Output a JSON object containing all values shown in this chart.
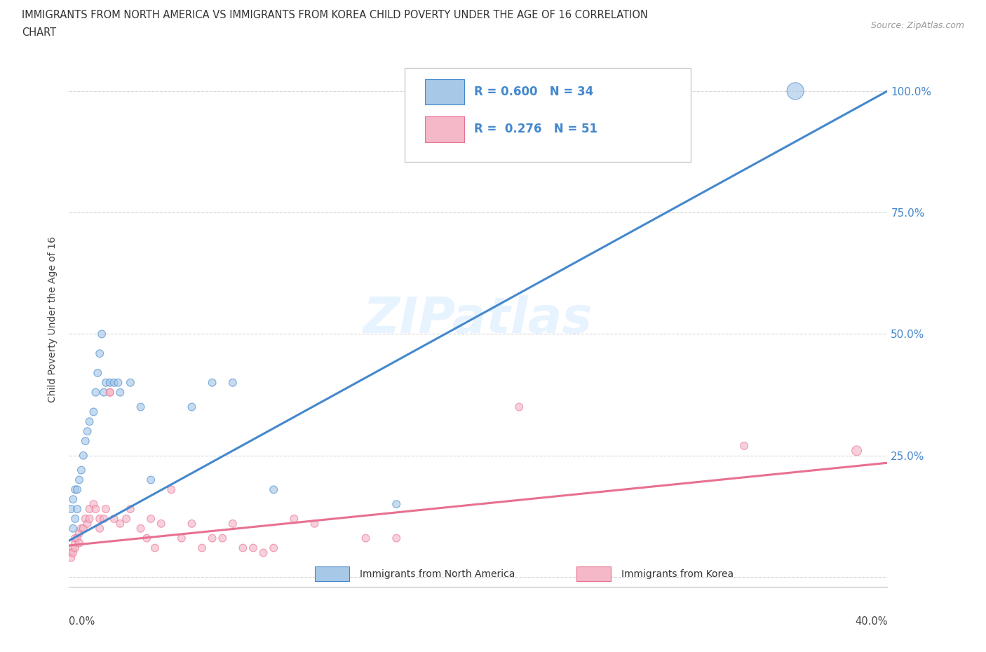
{
  "title_line1": "IMMIGRANTS FROM NORTH AMERICA VS IMMIGRANTS FROM KOREA CHILD POVERTY UNDER THE AGE OF 16 CORRELATION",
  "title_line2": "CHART",
  "source_text": "Source: ZipAtlas.com",
  "ylabel": "Child Poverty Under the Age of 16",
  "watermark": "ZIPatlas",
  "blue_color": "#a8c8e8",
  "pink_color": "#f4b8c8",
  "blue_line_color": "#4488cc",
  "pink_line_color": "#e87090",
  "blue_scatter": [
    [
      0.001,
      0.14
    ],
    [
      0.002,
      0.1
    ],
    [
      0.002,
      0.16
    ],
    [
      0.003,
      0.12
    ],
    [
      0.003,
      0.18
    ],
    [
      0.004,
      0.14
    ],
    [
      0.004,
      0.18
    ],
    [
      0.005,
      0.2
    ],
    [
      0.006,
      0.22
    ],
    [
      0.007,
      0.25
    ],
    [
      0.008,
      0.28
    ],
    [
      0.009,
      0.3
    ],
    [
      0.01,
      0.32
    ],
    [
      0.012,
      0.34
    ],
    [
      0.013,
      0.38
    ],
    [
      0.014,
      0.42
    ],
    [
      0.015,
      0.46
    ],
    [
      0.016,
      0.5
    ],
    [
      0.017,
      0.38
    ],
    [
      0.018,
      0.4
    ],
    [
      0.02,
      0.4
    ],
    [
      0.022,
      0.4
    ],
    [
      0.024,
      0.4
    ],
    [
      0.025,
      0.38
    ],
    [
      0.03,
      0.4
    ],
    [
      0.035,
      0.35
    ],
    [
      0.04,
      0.2
    ],
    [
      0.06,
      0.35
    ],
    [
      0.07,
      0.4
    ],
    [
      0.08,
      0.4
    ],
    [
      0.1,
      0.18
    ],
    [
      0.16,
      0.15
    ],
    [
      0.29,
      1.0
    ],
    [
      0.355,
      1.0
    ]
  ],
  "pink_scatter": [
    [
      0.001,
      0.05
    ],
    [
      0.001,
      0.04
    ],
    [
      0.002,
      0.06
    ],
    [
      0.002,
      0.05
    ],
    [
      0.003,
      0.07
    ],
    [
      0.003,
      0.06
    ],
    [
      0.003,
      0.08
    ],
    [
      0.004,
      0.08
    ],
    [
      0.005,
      0.09
    ],
    [
      0.005,
      0.07
    ],
    [
      0.006,
      0.1
    ],
    [
      0.007,
      0.1
    ],
    [
      0.008,
      0.12
    ],
    [
      0.009,
      0.11
    ],
    [
      0.01,
      0.14
    ],
    [
      0.01,
      0.12
    ],
    [
      0.012,
      0.15
    ],
    [
      0.013,
      0.14
    ],
    [
      0.015,
      0.12
    ],
    [
      0.015,
      0.1
    ],
    [
      0.017,
      0.12
    ],
    [
      0.018,
      0.14
    ],
    [
      0.02,
      0.38
    ],
    [
      0.02,
      0.38
    ],
    [
      0.022,
      0.12
    ],
    [
      0.025,
      0.11
    ],
    [
      0.028,
      0.12
    ],
    [
      0.03,
      0.14
    ],
    [
      0.035,
      0.1
    ],
    [
      0.038,
      0.08
    ],
    [
      0.04,
      0.12
    ],
    [
      0.042,
      0.06
    ],
    [
      0.045,
      0.11
    ],
    [
      0.05,
      0.18
    ],
    [
      0.055,
      0.08
    ],
    [
      0.06,
      0.11
    ],
    [
      0.065,
      0.06
    ],
    [
      0.07,
      0.08
    ],
    [
      0.075,
      0.08
    ],
    [
      0.08,
      0.11
    ],
    [
      0.085,
      0.06
    ],
    [
      0.09,
      0.06
    ],
    [
      0.095,
      0.05
    ],
    [
      0.1,
      0.06
    ],
    [
      0.11,
      0.12
    ],
    [
      0.12,
      0.11
    ],
    [
      0.145,
      0.08
    ],
    [
      0.16,
      0.08
    ],
    [
      0.22,
      0.35
    ],
    [
      0.33,
      0.27
    ],
    [
      0.385,
      0.26
    ]
  ],
  "blue_dot_sizes": [
    60,
    60,
    60,
    60,
    60,
    60,
    60,
    60,
    60,
    60,
    60,
    60,
    60,
    60,
    60,
    60,
    60,
    60,
    60,
    60,
    60,
    60,
    60,
    60,
    60,
    60,
    60,
    60,
    60,
    60,
    60,
    60,
    600,
    300
  ],
  "pink_dot_sizes": [
    60,
    60,
    60,
    60,
    60,
    60,
    60,
    60,
    60,
    60,
    60,
    60,
    60,
    60,
    60,
    60,
    60,
    60,
    60,
    60,
    60,
    60,
    60,
    60,
    60,
    60,
    60,
    60,
    60,
    60,
    60,
    60,
    60,
    60,
    60,
    60,
    60,
    60,
    60,
    60,
    60,
    60,
    60,
    60,
    60,
    60,
    60,
    60,
    60,
    60,
    100
  ],
  "blue_line_x": [
    0.0,
    0.4
  ],
  "blue_line_y": [
    0.075,
    1.0
  ],
  "pink_line_x": [
    0.0,
    0.4
  ],
  "pink_line_y": [
    0.065,
    0.235
  ],
  "xlim": [
    0.0,
    0.4
  ],
  "ylim": [
    -0.02,
    1.08
  ],
  "yticks": [
    0.0,
    0.25,
    0.5,
    0.75,
    1.0
  ],
  "ytick_labels_right": [
    "",
    "25.0%",
    "50.0%",
    "75.0%",
    "100.0%"
  ],
  "xtick_positions": [
    0.0,
    0.1,
    0.2,
    0.3,
    0.4
  ],
  "legend_r1": "R = 0.600",
  "legend_n1": "N = 34",
  "legend_r2": "R =  0.276",
  "legend_n2": "N = 51",
  "accent_color": "#4488cc",
  "label_color": "#555555"
}
